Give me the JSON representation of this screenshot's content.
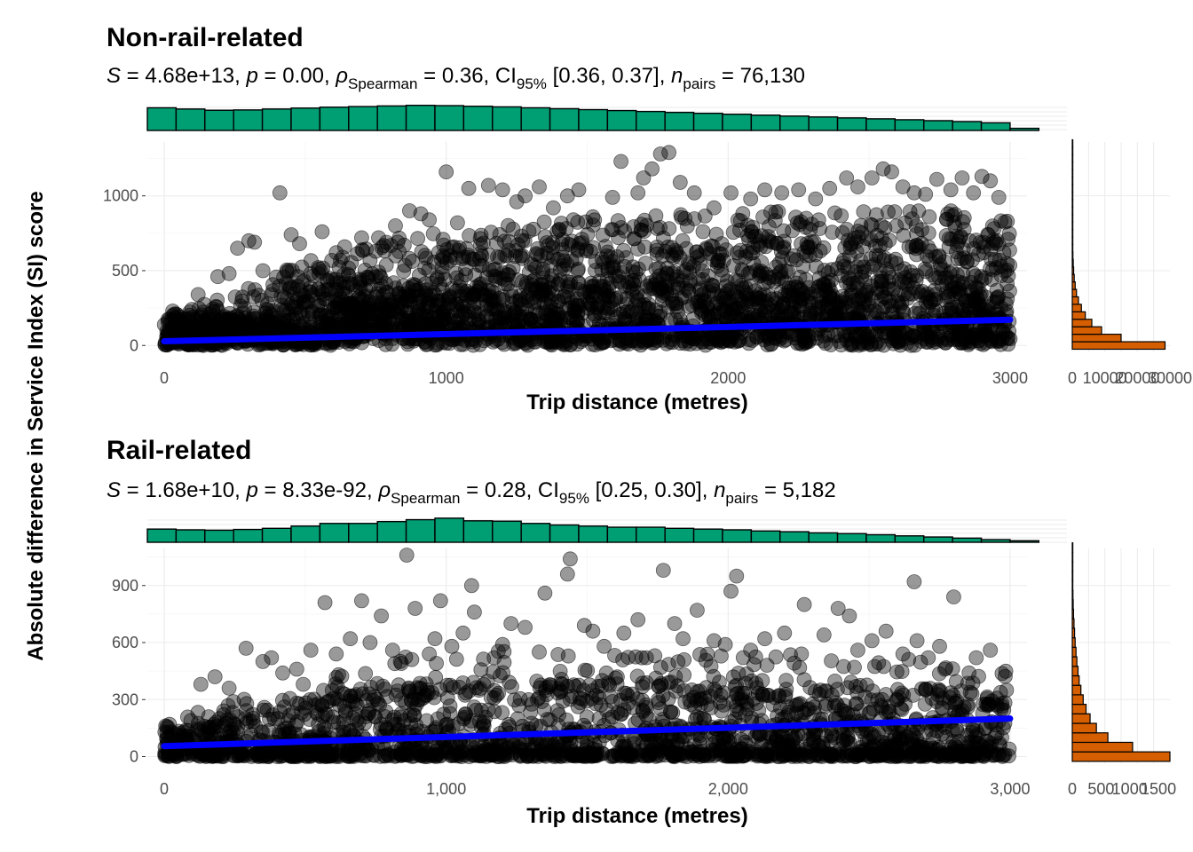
{
  "figure": {
    "ylabel": "Absolute difference in Service Index (SI) score"
  },
  "chart_data": [
    {
      "type": "scatter",
      "title": "Non-rail-related",
      "stats": {
        "S": "4.68e+13",
        "p": "0.00",
        "rho_label": "ρ",
        "rho_sub": "Spearman",
        "rho": "0.36",
        "ci_label": "CI",
        "ci_sub": "95%",
        "ci": "[0.36, 0.37]",
        "n_label": "n",
        "n_sub": "pairs",
        "n": "76,130"
      },
      "xlabel": "Trip distance (metres)",
      "xlim": [
        -60,
        3060
      ],
      "ylim": [
        -40,
        1360
      ],
      "x_ticks": [
        0,
        1000,
        2000,
        3000
      ],
      "x_tick_labels": [
        "0",
        "1000",
        "2000",
        "3000"
      ],
      "y_ticks": [
        0,
        500,
        1000
      ],
      "y_tick_labels": [
        "0",
        "500",
        "1000"
      ],
      "grid": true,
      "trend_line": {
        "x": [
          0,
          3000
        ],
        "y": [
          28,
          172
        ],
        "color": "#0000ff"
      },
      "point_color": "#000000",
      "point_cloud_upper_envelope": {
        "x": [
          0,
          100,
          200,
          300,
          400,
          500,
          600,
          700,
          800,
          900,
          1000,
          1200,
          1400,
          1600,
          1800,
          2000,
          2200,
          2400,
          2600,
          2800,
          3000
        ],
        "y": [
          150,
          200,
          250,
          320,
          380,
          450,
          480,
          520,
          570,
          590,
          610,
          640,
          670,
          690,
          700,
          710,
          720,
          720,
          720,
          720,
          700
        ]
      },
      "outlier_points": {
        "x": [
          30,
          120,
          190,
          230,
          260,
          300,
          320,
          350,
          410,
          450,
          480,
          560,
          610,
          640,
          700,
          760,
          820,
          870,
          910,
          940,
          1000,
          1040,
          1080,
          1150,
          1200,
          1250,
          1280,
          1330,
          1380,
          1430,
          1470,
          1520,
          1590,
          1620,
          1680,
          1700,
          1730,
          1760,
          1790,
          1830,
          1880,
          1950,
          2010,
          2080,
          2130,
          2190,
          2250,
          2310,
          2360,
          2420,
          2460,
          2510,
          2550,
          2580,
          2620,
          2660,
          2700,
          2740,
          2790,
          2830,
          2870,
          2900,
          2930,
          2960,
          2990
        ],
        "y": [
          230,
          340,
          460,
          480,
          650,
          700,
          690,
          500,
          1020,
          740,
          680,
          760,
          620,
          660,
          720,
          720,
          800,
          900,
          880,
          840,
          1160,
          820,
          1050,
          1070,
          1040,
          960,
          1000,
          1060,
          920,
          1000,
          1040,
          860,
          990,
          1230,
          1020,
          1120,
          1180,
          1280,
          1290,
          1090,
          1020,
          920,
          1020,
          980,
          1040,
          1020,
          1040,
          980,
          1050,
          1120,
          1060,
          1120,
          1180,
          1160,
          1060,
          1020,
          1010,
          1110,
          1040,
          1120,
          1020,
          1130,
          1100,
          990,
          830
        ]
      },
      "top_histogram": {
        "color": "#009e73",
        "bin_start": -60,
        "bin_width": 102,
        "counts": [
          3700,
          3500,
          3300,
          3350,
          3500,
          3650,
          3800,
          3900,
          4000,
          4100,
          4050,
          3950,
          3850,
          3700,
          3550,
          3400,
          3250,
          3100,
          2950,
          2800,
          2650,
          2500,
          2350,
          2200,
          2050,
          1900,
          1750,
          1600,
          1450,
          1250,
          350
        ],
        "max": 4200
      },
      "side_histogram": {
        "color": "#d55e00",
        "bin_start": -25,
        "bin_width": 50,
        "counts": [
          28500,
          15000,
          9000,
          6000,
          4000,
          2800,
          1900,
          1300,
          900,
          600,
          420,
          300,
          200,
          140,
          100,
          70,
          50,
          35,
          25,
          18,
          12,
          9,
          6,
          4,
          3,
          2,
          1,
          1
        ],
        "xlim": [
          0,
          30000
        ],
        "x_ticks": [
          0,
          10000,
          20000,
          30000
        ],
        "x_tick_labels": [
          "0",
          "10000",
          "20000",
          "30000"
        ]
      }
    },
    {
      "type": "scatter",
      "title": "Rail-related",
      "stats": {
        "S": "1.68e+10",
        "p": "8.33e-92",
        "rho_label": "ρ",
        "rho_sub": "Spearman",
        "rho": "0.28",
        "ci_label": "CI",
        "ci_sub": "95%",
        "ci": "[0.25, 0.30]",
        "n_label": "n",
        "n_sub": "pairs",
        "n": "5,182"
      },
      "xlabel": "Trip distance (metres)",
      "xlim": [
        -60,
        3060
      ],
      "ylim": [
        -35,
        1095
      ],
      "x_ticks": [
        0,
        1000,
        2000,
        3000
      ],
      "x_tick_labels": [
        "0",
        "1,000",
        "2,000",
        "3,000"
      ],
      "y_ticks": [
        0,
        300,
        600,
        900
      ],
      "y_tick_labels": [
        "0",
        "300",
        "600",
        "900"
      ],
      "grid": true,
      "trend_line": {
        "x": [
          0,
          3000
        ],
        "y": [
          55,
          200
        ],
        "color": "#0000ff"
      },
      "point_color": "#000000",
      "dense_band": {
        "x": [
          0,
          200,
          400,
          600,
          800,
          1000,
          1200,
          1400,
          1600,
          1800,
          2000,
          2200,
          2400,
          2600,
          2800,
          3000
        ],
        "y": [
          100,
          150,
          200,
          250,
          290,
          300,
          310,
          300,
          300,
          300,
          300,
          300,
          290,
          290,
          280,
          260
        ]
      },
      "scatter_points": {
        "x": [
          860,
          1440,
          1430,
          1770,
          2030,
          2660,
          2010,
          1090,
          980,
          1350,
          2270,
          2800,
          1890,
          2390,
          2430,
          570,
          700,
          770,
          890,
          1100,
          1230,
          1280,
          1490,
          1520,
          1630,
          1680,
          1810,
          1840,
          1950,
          2130,
          2200,
          2340,
          2510,
          2560,
          2670,
          2750,
          2880,
          290,
          350,
          380,
          520,
          610,
          660,
          730,
          810,
          940,
          1020,
          1170,
          1330,
          1560,
          1710,
          1990,
          2080,
          2260,
          2460,
          2620,
          2710,
          2930,
          130,
          180,
          230,
          420,
          470,
          960,
          1060,
          1200
        ],
        "y": [
          1060,
          1040,
          960,
          980,
          950,
          920,
          870,
          900,
          820,
          860,
          800,
          840,
          770,
          780,
          740,
          810,
          820,
          740,
          780,
          760,
          700,
          680,
          690,
          660,
          650,
          720,
          700,
          620,
          610,
          620,
          650,
          640,
          610,
          660,
          610,
          580,
          520,
          570,
          500,
          520,
          560,
          540,
          620,
          600,
          560,
          540,
          580,
          520,
          550,
          580,
          520,
          590,
          560,
          540,
          560,
          540,
          520,
          560,
          380,
          420,
          360,
          440,
          460,
          620,
          650,
          590
        ]
      },
      "top_histogram": {
        "color": "#009e73",
        "bin_start": -60,
        "bin_width": 102,
        "counts": [
          175,
          165,
          160,
          170,
          185,
          215,
          250,
          250,
          275,
          300,
          320,
          285,
          280,
          250,
          230,
          215,
          200,
          200,
          185,
          175,
          165,
          150,
          140,
          125,
          115,
          100,
          85,
          70,
          55,
          35,
          20
        ],
        "max": 330
      },
      "side_histogram": {
        "color": "#d55e00",
        "bin_start": -25,
        "bin_width": 50,
        "counts": [
          1700,
          1050,
          620,
          420,
          310,
          240,
          190,
          150,
          120,
          100,
          80,
          65,
          50,
          40,
          30,
          22,
          16,
          12,
          9,
          6,
          4,
          3,
          2
        ],
        "xlim": [
          0,
          1700
        ],
        "x_ticks": [
          0,
          500,
          1000,
          1500
        ],
        "x_tick_labels": [
          "0",
          "500",
          "1000",
          "1500"
        ]
      }
    }
  ]
}
